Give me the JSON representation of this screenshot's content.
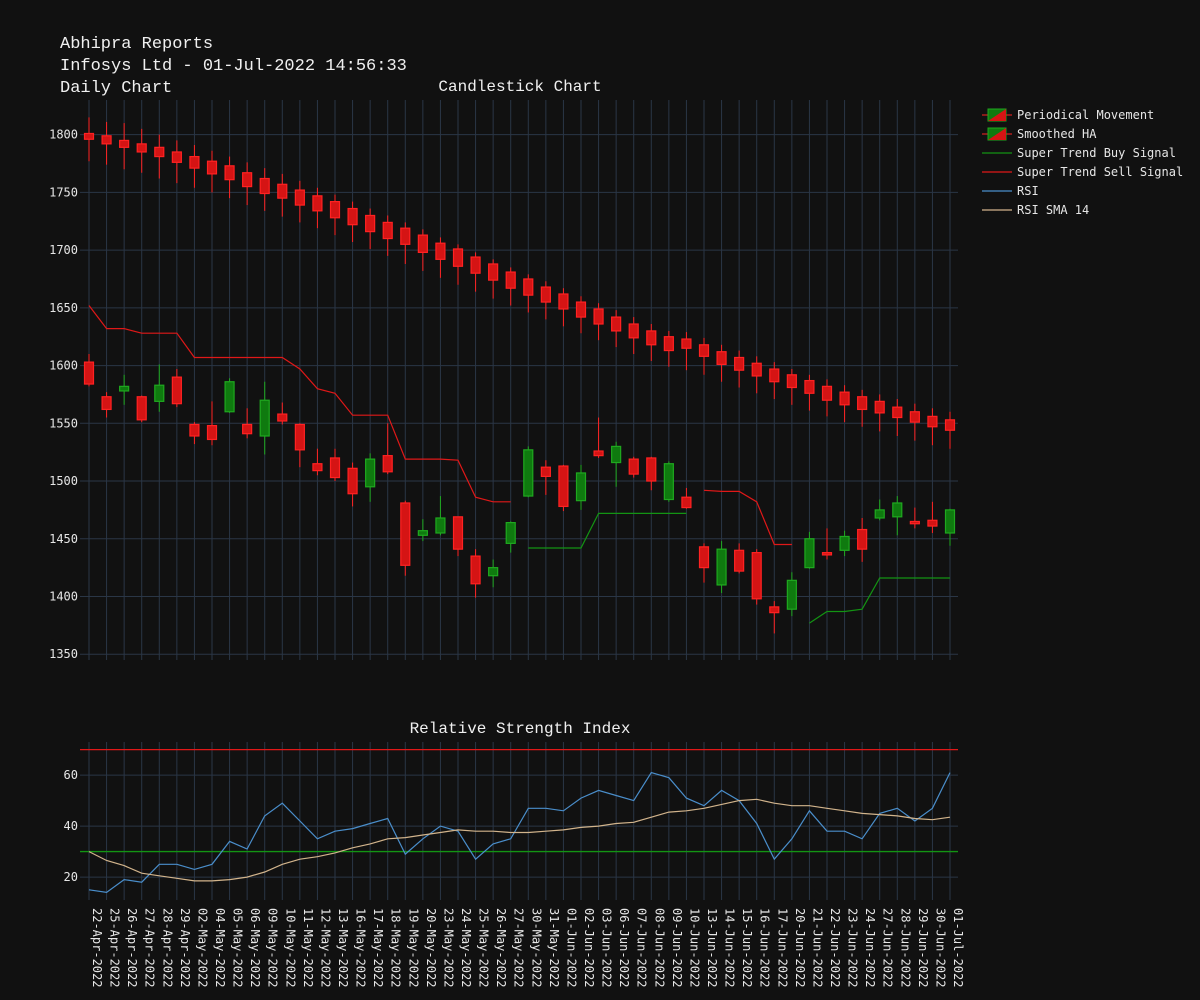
{
  "header": {
    "line1": "Abhipra Reports",
    "line2": "Infosys Ltd - 01-Jul-2022 14:56:33",
    "line3": "Daily Chart"
  },
  "colors": {
    "background": "#111111",
    "grid": "#2a3646",
    "up": "#0f7a0f",
    "down": "#d51414",
    "up_edge": "#1fa81f",
    "down_edge": "#ff2222",
    "buy_line": "#139413",
    "sell_line": "#e01818",
    "rsi_line": "#4a8ecb",
    "rsi_sma_line": "#d2b48c",
    "rsi_upper": "#e01818",
    "rsi_lower": "#139413",
    "text": "#e6e6e6"
  },
  "chart_data": [
    {
      "type": "candlestick",
      "title": "Candlestick Chart",
      "ylim": [
        1345,
        1830
      ],
      "yticks": [
        1350,
        1400,
        1450,
        1500,
        1550,
        1600,
        1650,
        1700,
        1750,
        1800
      ],
      "grid": true,
      "legend_position": "top-right (outside plot)",
      "legend": [
        {
          "label": "Periodical Movement",
          "kind": "candle"
        },
        {
          "label": "Smoothed HA",
          "kind": "candle"
        },
        {
          "label": "Super Trend Buy Signal",
          "kind": "line",
          "color_key": "buy_line"
        },
        {
          "label": "Super Trend Sell Signal",
          "kind": "line",
          "color_key": "sell_line"
        },
        {
          "label": "RSI",
          "kind": "line",
          "color_key": "rsi_line"
        },
        {
          "label": "RSI SMA 14",
          "kind": "line",
          "color_key": "rsi_sma_line"
        }
      ],
      "dates": [
        "22-Apr-2022",
        "25-Apr-2022",
        "26-Apr-2022",
        "27-Apr-2022",
        "28-Apr-2022",
        "29-Apr-2022",
        "02-May-2022",
        "04-May-2022",
        "05-May-2022",
        "06-May-2022",
        "09-May-2022",
        "10-May-2022",
        "11-May-2022",
        "12-May-2022",
        "13-May-2022",
        "16-May-2022",
        "17-May-2022",
        "18-May-2022",
        "19-May-2022",
        "20-May-2022",
        "23-May-2022",
        "24-May-2022",
        "25-May-2022",
        "26-May-2022",
        "27-May-2022",
        "30-May-2022",
        "31-May-2022",
        "01-Jun-2022",
        "02-Jun-2022",
        "03-Jun-2022",
        "06-Jun-2022",
        "07-Jun-2022",
        "08-Jun-2022",
        "09-Jun-2022",
        "10-Jun-2022",
        "13-Jun-2022",
        "14-Jun-2022",
        "15-Jun-2022",
        "16-Jun-2022",
        "17-Jun-2022",
        "20-Jun-2022",
        "21-Jun-2022",
        "22-Jun-2022",
        "23-Jun-2022",
        "24-Jun-2022",
        "27-Jun-2022",
        "28-Jun-2022",
        "29-Jun-2022",
        "30-Jun-2022",
        "01-Jul-2022"
      ],
      "periodical_movement": [
        {
          "o": 1603,
          "h": 1610,
          "l": 1582,
          "c": 1584
        },
        {
          "o": 1573,
          "h": 1577,
          "l": 1555,
          "c": 1562
        },
        {
          "o": 1578,
          "h": 1592,
          "l": 1566,
          "c": 1582
        },
        {
          "o": 1573,
          "h": 1574,
          "l": 1551,
          "c": 1553
        },
        {
          "o": 1569,
          "h": 1601,
          "l": 1560,
          "c": 1583
        },
        {
          "o": 1590,
          "h": 1597,
          "l": 1564,
          "c": 1567
        },
        {
          "o": 1549,
          "h": 1551,
          "l": 1532,
          "c": 1539
        },
        {
          "o": 1548,
          "h": 1569,
          "l": 1531,
          "c": 1536
        },
        {
          "o": 1560,
          "h": 1589,
          "l": 1559,
          "c": 1586
        },
        {
          "o": 1549,
          "h": 1563,
          "l": 1537,
          "c": 1541
        },
        {
          "o": 1539,
          "h": 1586,
          "l": 1523,
          "c": 1570
        },
        {
          "o": 1558,
          "h": 1568,
          "l": 1549,
          "c": 1552
        },
        {
          "o": 1549,
          "h": 1550,
          "l": 1512,
          "c": 1527
        },
        {
          "o": 1515,
          "h": 1528,
          "l": 1505,
          "c": 1509
        },
        {
          "o": 1520,
          "h": 1528,
          "l": 1500,
          "c": 1503
        },
        {
          "o": 1511,
          "h": 1516,
          "l": 1478,
          "c": 1489
        },
        {
          "o": 1495,
          "h": 1524,
          "l": 1482,
          "c": 1519
        },
        {
          "o": 1522,
          "h": 1550,
          "l": 1506,
          "c": 1508
        },
        {
          "o": 1481,
          "h": 1483,
          "l": 1418,
          "c": 1427
        },
        {
          "o": 1453,
          "h": 1467,
          "l": 1448,
          "c": 1457
        },
        {
          "o": 1455,
          "h": 1487,
          "l": 1453,
          "c": 1468
        },
        {
          "o": 1469,
          "h": 1469,
          "l": 1435,
          "c": 1441
        },
        {
          "o": 1435,
          "h": 1441,
          "l": 1399,
          "c": 1411
        },
        {
          "o": 1418,
          "h": 1432,
          "l": 1408,
          "c": 1425
        },
        {
          "o": 1446,
          "h": 1465,
          "l": 1438,
          "c": 1464
        },
        {
          "o": 1487,
          "h": 1530,
          "l": 1486,
          "c": 1527
        },
        {
          "o": 1512,
          "h": 1518,
          "l": 1488,
          "c": 1504
        },
        {
          "o": 1513,
          "h": 1514,
          "l": 1474,
          "c": 1478
        },
        {
          "o": 1483,
          "h": 1514,
          "l": 1475,
          "c": 1507
        },
        {
          "o": 1526,
          "h": 1555,
          "l": 1520,
          "c": 1522
        },
        {
          "o": 1516,
          "h": 1534,
          "l": 1495,
          "c": 1530
        },
        {
          "o": 1519,
          "h": 1521,
          "l": 1503,
          "c": 1506
        },
        {
          "o": 1520,
          "h": 1521,
          "l": 1492,
          "c": 1500
        },
        {
          "o": 1484,
          "h": 1517,
          "l": 1482,
          "c": 1515
        },
        {
          "o": 1486,
          "h": 1494,
          "l": 1476,
          "c": 1477
        },
        {
          "o": 1443,
          "h": 1446,
          "l": 1412,
          "c": 1425
        },
        {
          "o": 1410,
          "h": 1448,
          "l": 1403,
          "c": 1441
        },
        {
          "o": 1440,
          "h": 1446,
          "l": 1420,
          "c": 1422
        },
        {
          "o": 1438,
          "h": 1441,
          "l": 1393,
          "c": 1398
        },
        {
          "o": 1391,
          "h": 1396,
          "l": 1368,
          "c": 1386
        },
        {
          "o": 1389,
          "h": 1421,
          "l": 1383,
          "c": 1414
        },
        {
          "o": 1425,
          "h": 1456,
          "l": 1424,
          "c": 1450
        },
        {
          "o": 1438,
          "h": 1459,
          "l": 1432,
          "c": 1436
        },
        {
          "o": 1440,
          "h": 1457,
          "l": 1435,
          "c": 1452
        },
        {
          "o": 1458,
          "h": 1468,
          "l": 1430,
          "c": 1441
        },
        {
          "o": 1468,
          "h": 1484,
          "l": 1466,
          "c": 1475
        },
        {
          "o": 1469,
          "h": 1487,
          "l": 1453,
          "c": 1481
        },
        {
          "o": 1465,
          "h": 1477,
          "l": 1459,
          "c": 1463
        },
        {
          "o": 1466,
          "h": 1482,
          "l": 1455,
          "c": 1461
        },
        {
          "o": 1455,
          "h": 1476,
          "l": 1444,
          "c": 1475
        }
      ],
      "smoothed_ha": [
        {
          "o": 1801,
          "h": 1815,
          "l": 1777,
          "c": 1796
        },
        {
          "o": 1799,
          "h": 1811,
          "l": 1774,
          "c": 1792
        },
        {
          "o": 1795,
          "h": 1810,
          "l": 1770,
          "c": 1789
        },
        {
          "o": 1792,
          "h": 1805,
          "l": 1767,
          "c": 1785
        },
        {
          "o": 1789,
          "h": 1800,
          "l": 1762,
          "c": 1781
        },
        {
          "o": 1785,
          "h": 1795,
          "l": 1758,
          "c": 1776
        },
        {
          "o": 1781,
          "h": 1791,
          "l": 1754,
          "c": 1771
        },
        {
          "o": 1777,
          "h": 1786,
          "l": 1750,
          "c": 1766
        },
        {
          "o": 1773,
          "h": 1781,
          "l": 1745,
          "c": 1761
        },
        {
          "o": 1767,
          "h": 1776,
          "l": 1739,
          "c": 1755
        },
        {
          "o": 1762,
          "h": 1771,
          "l": 1734,
          "c": 1749
        },
        {
          "o": 1757,
          "h": 1766,
          "l": 1729,
          "c": 1745
        },
        {
          "o": 1752,
          "h": 1760,
          "l": 1724,
          "c": 1739
        },
        {
          "o": 1747,
          "h": 1754,
          "l": 1719,
          "c": 1734
        },
        {
          "o": 1742,
          "h": 1748,
          "l": 1713,
          "c": 1728
        },
        {
          "o": 1736,
          "h": 1742,
          "l": 1707,
          "c": 1722
        },
        {
          "o": 1730,
          "h": 1736,
          "l": 1701,
          "c": 1716
        },
        {
          "o": 1724,
          "h": 1730,
          "l": 1695,
          "c": 1710
        },
        {
          "o": 1719,
          "h": 1724,
          "l": 1688,
          "c": 1705
        },
        {
          "o": 1713,
          "h": 1718,
          "l": 1682,
          "c": 1698
        },
        {
          "o": 1706,
          "h": 1711,
          "l": 1676,
          "c": 1692
        },
        {
          "o": 1701,
          "h": 1705,
          "l": 1670,
          "c": 1686
        },
        {
          "o": 1694,
          "h": 1698,
          "l": 1664,
          "c": 1680
        },
        {
          "o": 1688,
          "h": 1692,
          "l": 1658,
          "c": 1674
        },
        {
          "o": 1681,
          "h": 1685,
          "l": 1652,
          "c": 1667
        },
        {
          "o": 1675,
          "h": 1679,
          "l": 1646,
          "c": 1661
        },
        {
          "o": 1668,
          "h": 1673,
          "l": 1640,
          "c": 1655
        },
        {
          "o": 1662,
          "h": 1667,
          "l": 1634,
          "c": 1649
        },
        {
          "o": 1655,
          "h": 1660,
          "l": 1628,
          "c": 1642
        },
        {
          "o": 1649,
          "h": 1654,
          "l": 1622,
          "c": 1636
        },
        {
          "o": 1642,
          "h": 1648,
          "l": 1616,
          "c": 1630
        },
        {
          "o": 1636,
          "h": 1642,
          "l": 1610,
          "c": 1624
        },
        {
          "o": 1630,
          "h": 1636,
          "l": 1604,
          "c": 1618
        },
        {
          "o": 1625,
          "h": 1630,
          "l": 1599,
          "c": 1613
        },
        {
          "o": 1623,
          "h": 1629,
          "l": 1596,
          "c": 1615
        },
        {
          "o": 1618,
          "h": 1624,
          "l": 1592,
          "c": 1608
        },
        {
          "o": 1612,
          "h": 1618,
          "l": 1586,
          "c": 1601
        },
        {
          "o": 1607,
          "h": 1613,
          "l": 1581,
          "c": 1596
        },
        {
          "o": 1602,
          "h": 1608,
          "l": 1576,
          "c": 1591
        },
        {
          "o": 1597,
          "h": 1603,
          "l": 1571,
          "c": 1586
        },
        {
          "o": 1592,
          "h": 1597,
          "l": 1566,
          "c": 1581
        },
        {
          "o": 1587,
          "h": 1592,
          "l": 1561,
          "c": 1576
        },
        {
          "o": 1582,
          "h": 1588,
          "l": 1556,
          "c": 1570
        },
        {
          "o": 1577,
          "h": 1583,
          "l": 1551,
          "c": 1566
        },
        {
          "o": 1573,
          "h": 1579,
          "l": 1547,
          "c": 1562
        },
        {
          "o": 1569,
          "h": 1575,
          "l": 1543,
          "c": 1559
        },
        {
          "o": 1564,
          "h": 1571,
          "l": 1539,
          "c": 1555
        },
        {
          "o": 1560,
          "h": 1567,
          "l": 1535,
          "c": 1551
        },
        {
          "o": 1556,
          "h": 1563,
          "l": 1531,
          "c": 1547
        },
        {
          "o": 1553,
          "h": 1560,
          "l": 1528,
          "c": 1544
        }
      ],
      "super_trend_buy": [
        null,
        null,
        null,
        null,
        null,
        null,
        null,
        null,
        null,
        null,
        null,
        null,
        null,
        null,
        null,
        null,
        null,
        null,
        null,
        null,
        null,
        null,
        null,
        null,
        null,
        1442,
        1442,
        1442,
        1442,
        1472,
        1472,
        1472,
        1472,
        1472,
        1472,
        null,
        null,
        null,
        null,
        null,
        null,
        1377,
        1387,
        1387,
        1389,
        1416,
        1416,
        1416,
        1416,
        1416
      ],
      "super_trend_sell": [
        1652,
        1632,
        1632,
        1628,
        1628,
        1628,
        1607,
        1607,
        1607,
        1607,
        1607,
        1607,
        1597,
        1580,
        1576,
        1557,
        1557,
        1557,
        1519,
        1519,
        1519,
        1518,
        1486,
        1482,
        1482,
        null,
        null,
        null,
        null,
        null,
        null,
        null,
        null,
        null,
        null,
        1492,
        1491,
        1491,
        1482,
        1445,
        1445,
        null,
        null,
        null,
        null,
        null,
        null,
        null,
        null,
        null
      ]
    },
    {
      "type": "line",
      "title": "Relative Strength Index",
      "ylim": [
        11,
        73
      ],
      "yticks": [
        20,
        40,
        60
      ],
      "hlines": [
        {
          "value": 70,
          "color_key": "rsi_upper"
        },
        {
          "value": 30,
          "color_key": "rsi_lower"
        }
      ],
      "series": [
        {
          "name": "RSI",
          "color_key": "rsi_line",
          "values": [
            15,
            14,
            19,
            18,
            25,
            25,
            23,
            25,
            34,
            31,
            44,
            49,
            42,
            35,
            38,
            39,
            41,
            43,
            29,
            35,
            40,
            38,
            27,
            33,
            35,
            47,
            47,
            46,
            51,
            54,
            52,
            50,
            61,
            59,
            51,
            48,
            54,
            50,
            41,
            27,
            35,
            46,
            38,
            38,
            35,
            45,
            47,
            42,
            47,
            61
          ]
        },
        {
          "name": "RSI SMA 14",
          "color_key": "rsi_sma_line",
          "values": [
            30,
            26.5,
            24.5,
            21.5,
            20.5,
            19.5,
            18.5,
            18.5,
            19,
            20,
            22,
            25,
            27,
            28,
            29.5,
            31.5,
            33,
            35,
            35.5,
            36.5,
            37.5,
            38.5,
            38,
            38,
            37.5,
            37.5,
            38,
            38.5,
            39.5,
            40,
            41,
            41.5,
            43.5,
            45.5,
            46,
            47,
            48.5,
            50,
            50.5,
            49,
            48,
            48,
            47,
            46,
            45,
            44.5,
            44,
            43,
            42.5,
            43.5
          ]
        }
      ]
    }
  ]
}
